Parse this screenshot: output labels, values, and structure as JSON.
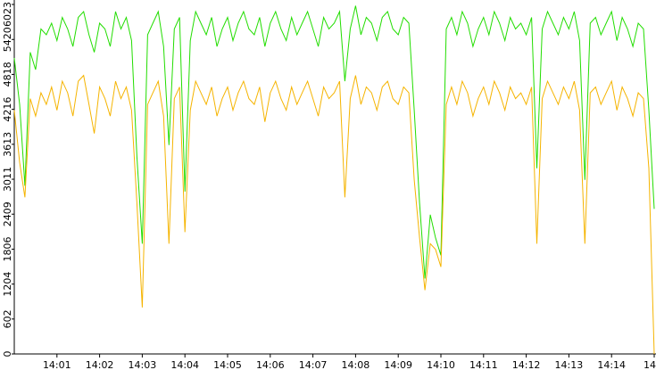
{
  "chart_data": {
    "type": "line",
    "categories": [
      null,
      null,
      null,
      null,
      null,
      null,
      null,
      null,
      "14:01",
      null,
      null,
      null,
      null,
      null,
      null,
      null,
      "14:02",
      null,
      null,
      null,
      null,
      null,
      null,
      null,
      "14:03",
      null,
      null,
      null,
      null,
      null,
      null,
      null,
      "14:04",
      null,
      null,
      null,
      null,
      null,
      null,
      null,
      "14:05",
      null,
      null,
      null,
      null,
      null,
      null,
      null,
      "14:06",
      null,
      null,
      null,
      null,
      null,
      null,
      null,
      "14:07",
      null,
      null,
      null,
      null,
      null,
      null,
      null,
      "14:08",
      null,
      null,
      null,
      null,
      null,
      null,
      null,
      "14:09",
      null,
      null,
      null,
      null,
      null,
      null,
      null,
      "14:10",
      null,
      null,
      null,
      null,
      null,
      null,
      null,
      "14:11",
      null,
      null,
      null,
      null,
      null,
      null,
      null,
      "14:12",
      null,
      null,
      null,
      null,
      null,
      null,
      null,
      "14:13",
      null,
      null,
      null,
      null,
      null,
      null,
      null,
      "14:14",
      null,
      null,
      null,
      null,
      null,
      null,
      null,
      "14"
    ],
    "series": [
      {
        "color": "#22dd00",
        "values": [
          5100,
          4300,
          2900,
          5200,
          4900,
          5600,
          5500,
          5700,
          5400,
          5800,
          5600,
          5300,
          5800,
          5900,
          5500,
          5200,
          5700,
          5600,
          5300,
          5900,
          5600,
          5800,
          5400,
          3400,
          1900,
          5500,
          5700,
          5900,
          5300,
          3600,
          5600,
          5800,
          2800,
          5400,
          5900,
          5700,
          5500,
          5800,
          5300,
          5600,
          5800,
          5400,
          5700,
          5900,
          5600,
          5500,
          5800,
          5300,
          5700,
          5900,
          5600,
          5400,
          5800,
          5500,
          5700,
          5900,
          5600,
          5300,
          5800,
          5600,
          5700,
          5900,
          4700,
          5600,
          6000,
          5500,
          5800,
          5700,
          5400,
          5800,
          5900,
          5600,
          5500,
          5800,
          5700,
          4200,
          2600,
          1300,
          2400,
          2000,
          1700,
          5600,
          5800,
          5500,
          5900,
          5700,
          5300,
          5600,
          5800,
          5500,
          5900,
          5700,
          5400,
          5800,
          5600,
          5700,
          5500,
          5800,
          3200,
          5600,
          5900,
          5700,
          5500,
          5800,
          5600,
          5900,
          5400,
          3000,
          5700,
          5800,
          5500,
          5700,
          5900,
          5400,
          5800,
          5600,
          5300,
          5700,
          5600,
          4200,
          2500
        ]
      },
      {
        "color": "#f5b400",
        "values": [
          4200,
          3300,
          2700,
          4400,
          4100,
          4500,
          4300,
          4600,
          4200,
          4700,
          4500,
          4100,
          4700,
          4800,
          4300,
          3800,
          4600,
          4400,
          4100,
          4700,
          4400,
          4600,
          4200,
          2600,
          800,
          4300,
          4500,
          4700,
          4100,
          1900,
          4400,
          4600,
          2100,
          4200,
          4700,
          4500,
          4300,
          4600,
          4100,
          4400,
          4600,
          4200,
          4500,
          4700,
          4400,
          4300,
          4600,
          4000,
          4500,
          4700,
          4400,
          4200,
          4600,
          4300,
          4500,
          4700,
          4400,
          4100,
          4600,
          4400,
          4500,
          4700,
          2700,
          4400,
          4800,
          4300,
          4600,
          4500,
          4200,
          4600,
          4700,
          4400,
          4300,
          4600,
          4500,
          3000,
          2000,
          1100,
          1900,
          1800,
          1500,
          4300,
          4600,
          4300,
          4700,
          4500,
          4100,
          4400,
          4600,
          4300,
          4700,
          4500,
          4200,
          4600,
          4400,
          4500,
          4300,
          4600,
          1900,
          4400,
          4700,
          4500,
          4300,
          4600,
          4400,
          4700,
          4200,
          1900,
          4500,
          4600,
          4300,
          4500,
          4700,
          4200,
          4600,
          4400,
          4100,
          4500,
          4400,
          3200,
          0
        ]
      }
    ],
    "ylim": [
      0,
      6023
    ],
    "yticks": [
      0,
      602,
      1204,
      1806,
      2409,
      3011,
      3613,
      4216,
      4818,
      5420,
      6023
    ]
  }
}
